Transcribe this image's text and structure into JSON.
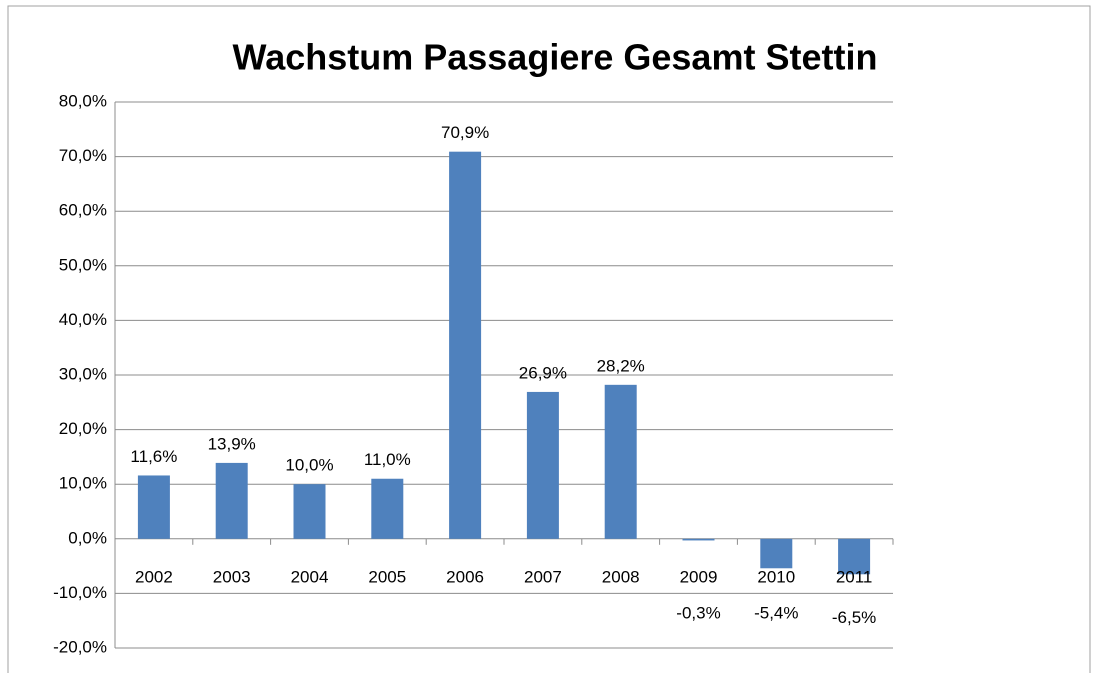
{
  "chart_data": {
    "type": "bar",
    "title": "Wachstum Passagiere Gesamt Stettin",
    "categories": [
      "2002",
      "2003",
      "2004",
      "2005",
      "2006",
      "2007",
      "2008",
      "2009",
      "2010",
      "2011"
    ],
    "values": [
      11.6,
      13.9,
      10.0,
      11.0,
      70.9,
      26.9,
      28.2,
      -0.3,
      -5.4,
      -6.5
    ],
    "value_labels": [
      "11,6%",
      "13,9%",
      "10,0%",
      "11,0%",
      "70,9%",
      "26,9%",
      "28,2%",
      "-0,3%",
      "-5,4%",
      "-6,5%"
    ],
    "color": "#4f81bd",
    "ylim": [
      -20,
      80
    ],
    "yticks": [
      {
        "value": -20,
        "label": "-20,0%"
      },
      {
        "value": -10,
        "label": "-10,0%"
      },
      {
        "value": 0,
        "label": "0,0%"
      },
      {
        "value": 10,
        "label": "10,0%"
      },
      {
        "value": 20,
        "label": "20,0%"
      },
      {
        "value": 30,
        "label": "30,0%"
      },
      {
        "value": 40,
        "label": "40,0%"
      },
      {
        "value": 50,
        "label": "50,0%"
      },
      {
        "value": 60,
        "label": "60,0%"
      },
      {
        "value": 70,
        "label": "70,0%"
      },
      {
        "value": 80,
        "label": "80,0%"
      }
    ],
    "grid": true
  }
}
